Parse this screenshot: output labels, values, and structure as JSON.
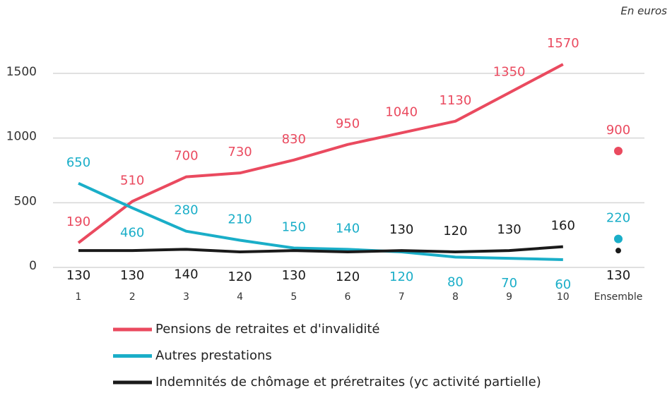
{
  "chart_data": {
    "type": "line",
    "note": "En euros",
    "categories": [
      "1",
      "2",
      "3",
      "4",
      "5",
      "6",
      "7",
      "8",
      "9",
      "10"
    ],
    "total_category": "Ensemble",
    "series": [
      {
        "name": "Pensions de retraites et d'invalidité",
        "color": "#ea4a5f",
        "values": [
          190,
          510,
          700,
          730,
          830,
          950,
          1040,
          1130,
          1350,
          1570
        ],
        "total": 900
      },
      {
        "name": "Autres prestations",
        "color": "#1aaec8",
        "values": [
          650,
          460,
          280,
          210,
          150,
          140,
          120,
          80,
          70,
          60
        ],
        "total": 220
      },
      {
        "name": "Indemnités de chômage et préretraites (yc activité partielle)",
        "color": "#1a1a1a",
        "values": [
          130,
          130,
          140,
          120,
          130,
          120,
          130,
          120,
          130,
          160
        ],
        "total": 130
      }
    ],
    "ylim": [
      0,
      1700
    ],
    "yticks": [
      0,
      500,
      1000,
      1500
    ],
    "grid": true
  }
}
